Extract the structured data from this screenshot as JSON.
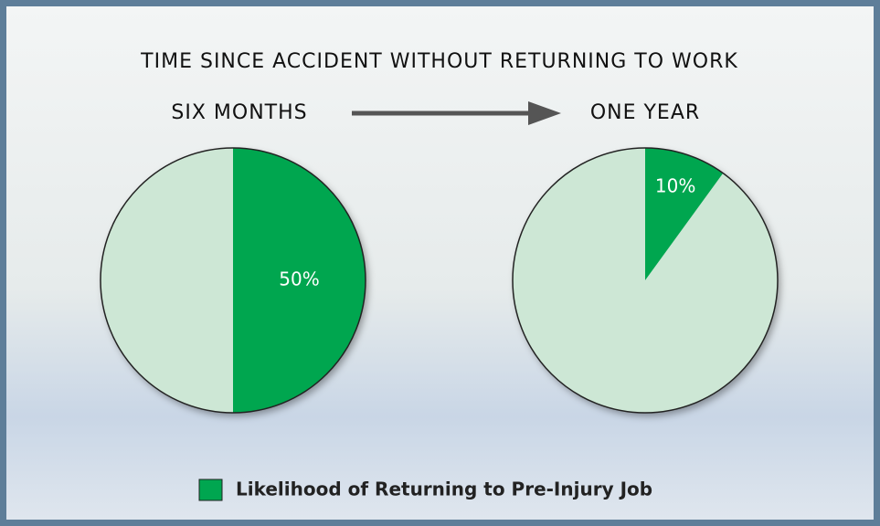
{
  "title": "TIME SINCE ACCIDENT WITHOUT RETURNING TO WORK",
  "legend": "Likelihood of Returning to Pre-Injury Job",
  "chart_data": [
    {
      "type": "pie",
      "title": "SIX MONTHS",
      "values": [
        50,
        50
      ],
      "value_labels": [
        "50%",
        null
      ],
      "colors": [
        "#00a650",
        "#cde7d5"
      ]
    },
    {
      "type": "pie",
      "title": "ONE YEAR",
      "values": [
        10,
        90
      ],
      "value_labels": [
        "10%",
        null
      ],
      "colors": [
        "#00a650",
        "#cde7d5"
      ]
    }
  ]
}
